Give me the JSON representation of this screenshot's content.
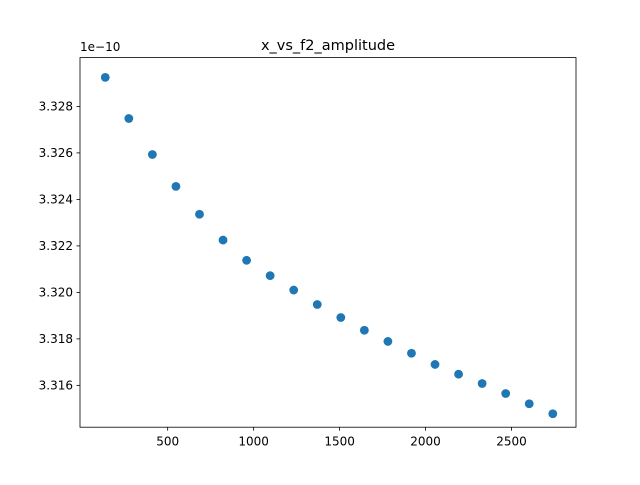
{
  "chart_data": {
    "type": "scatter",
    "title": "x_vs_f2_amplitude",
    "xlabel": "",
    "ylabel": "",
    "xlim": [
      -10,
      2875
    ],
    "ylim": [
      3.3142e-10,
      3.3301e-10
    ],
    "offset_label": "1e−10",
    "x_ticks": [
      500,
      1000,
      1500,
      2000,
      2500
    ],
    "x_tick_labels": [
      "500",
      "1000",
      "1500",
      "2000",
      "2500"
    ],
    "y_ticks": [
      3.316,
      3.318,
      3.32,
      3.322,
      3.324,
      3.326,
      3.328
    ],
    "y_tick_labels": [
      "3.316",
      "3.318",
      "3.320",
      "3.322",
      "3.324",
      "3.326",
      "3.328"
    ],
    "marker_color": "#1f77b4",
    "series": [
      {
        "name": "f2_amplitude",
        "x": [
          137,
          274,
          411,
          548,
          685,
          822,
          959,
          1096,
          1233,
          1370,
          1507,
          1644,
          1781,
          1918,
          2055,
          2192,
          2329,
          2466,
          2603,
          2740
        ],
        "y": [
          3.32925e-10,
          3.32748e-10,
          3.32593e-10,
          3.32456e-10,
          3.32336e-10,
          3.32225e-10,
          3.32138e-10,
          3.32072e-10,
          3.3201e-10,
          3.31948e-10,
          3.31892e-10,
          3.31837e-10,
          3.31789e-10,
          3.31738e-10,
          3.3169e-10,
          3.31648e-10,
          3.31608e-10,
          3.31565e-10,
          3.31521e-10,
          3.31478e-10
        ]
      }
    ]
  }
}
